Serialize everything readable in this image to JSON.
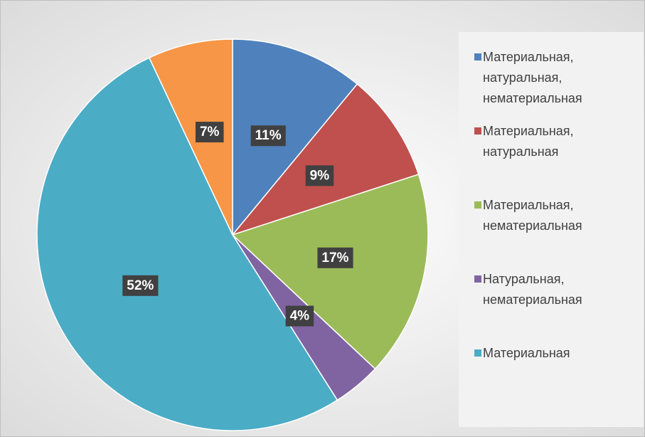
{
  "chart_data": {
    "type": "pie",
    "categories": [
      "Материальная, натуральная, нематериальная",
      "Материальная, натуральная",
      "Материальная, нематериальная",
      "Натуральная, нематериальная",
      "Материальная",
      null
    ],
    "values": [
      11,
      9,
      17,
      4,
      52,
      7
    ],
    "value_labels": [
      "11%",
      "9%",
      "17%",
      "4%",
      "52%",
      "7%"
    ],
    "colors": [
      "#4f81bd",
      "#c0504d",
      "#9bbb59",
      "#8064a2",
      "#4bacc6",
      "#f79646"
    ],
    "legend": "right"
  }
}
